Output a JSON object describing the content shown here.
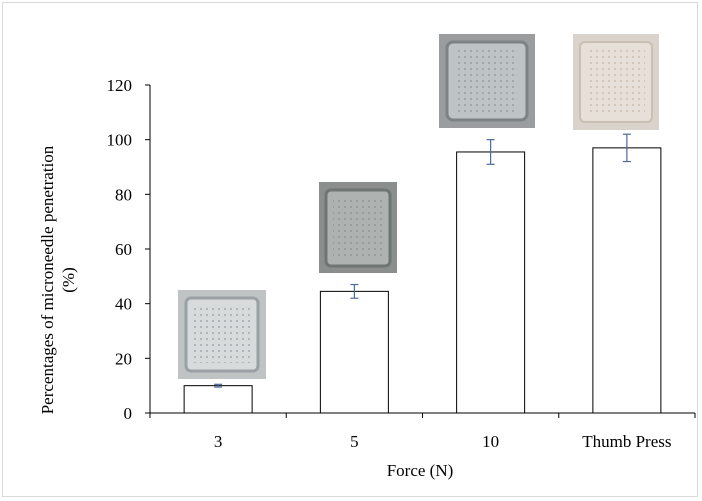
{
  "chart_data": {
    "type": "bar",
    "categories": [
      "3",
      "5",
      "10",
      "Thumb Press"
    ],
    "values": [
      10,
      44.5,
      95.5,
      97
    ],
    "errors": [
      0.5,
      2.5,
      4.5,
      5
    ],
    "xlabel": "Force (N)",
    "ylabel_line1": "Percentages of microneedle penetration",
    "ylabel_line2": "(%)",
    "ylim": [
      0,
      120
    ],
    "yticks": [
      0,
      20,
      40,
      60,
      80,
      100,
      120
    ],
    "grid": false,
    "bar_fill": "#ffffff",
    "bar_stroke": "#000000",
    "error_color": "#4a6a9a",
    "inset_images": [
      "microneedle-patch-3N",
      "microneedle-patch-5N",
      "microneedle-patch-10N",
      "microneedle-patch-thumb-press"
    ]
  }
}
